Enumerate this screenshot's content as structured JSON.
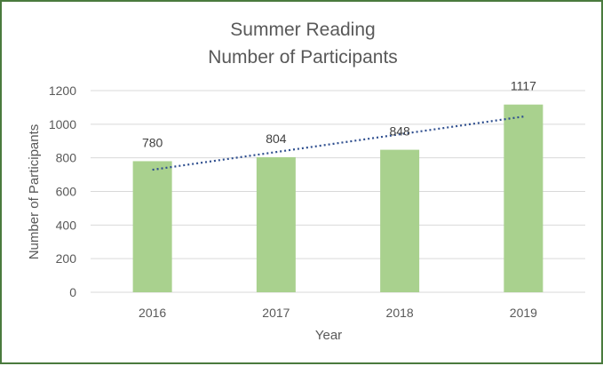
{
  "chart_data": {
    "type": "bar",
    "title": [
      "Summer Reading",
      "Number of Participants"
    ],
    "xlabel": "Year",
    "ylabel": "Number of Participants",
    "categories": [
      "2016",
      "2017",
      "2018",
      "2019"
    ],
    "values": [
      780,
      804,
      848,
      1117
    ],
    "data_labels": [
      "780",
      "804",
      "848",
      "1117"
    ],
    "ylim": [
      0,
      1200
    ],
    "yticks": [
      0,
      200,
      400,
      600,
      800,
      1000,
      1200
    ],
    "grid": true,
    "legend": "none",
    "trendline": {
      "type": "linear",
      "style": "dotted"
    },
    "colors": {
      "bar": "#a9d18e",
      "trendline": "#2f4f8f",
      "gridline": "#d9d9d9",
      "border": "#4a7a3e",
      "text": "#595959"
    }
  }
}
